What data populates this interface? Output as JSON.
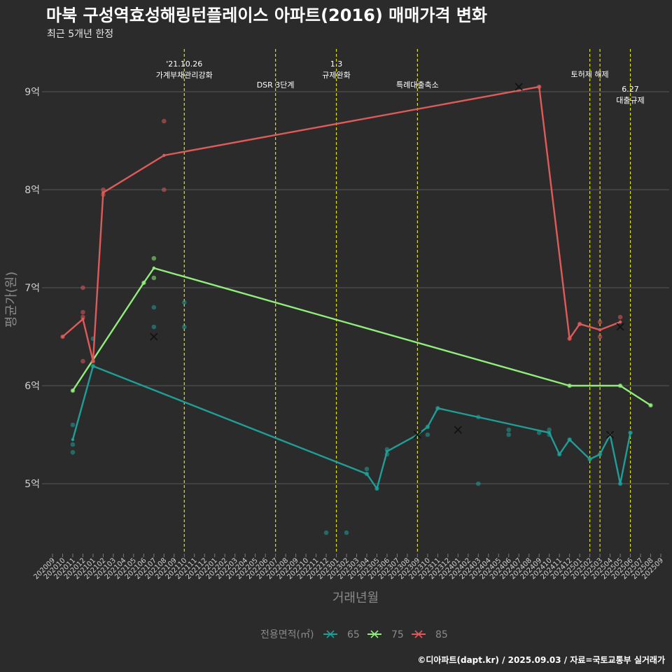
{
  "chart_data": {
    "type": "line",
    "title": "마북 구성역효성해링턴플레이스 아파트(2016) 매매가격 변화",
    "subtitle": "최근 5개년 한정",
    "xlabel": "거래년월",
    "ylabel": "평균가(원)",
    "ylim": [
      4.3,
      9.5
    ],
    "y_ticks": [
      {
        "value": 5,
        "label": "5억"
      },
      {
        "value": 6,
        "label": "6억"
      },
      {
        "value": 7,
        "label": "7억"
      },
      {
        "value": 8,
        "label": "8억"
      },
      {
        "value": 9,
        "label": "9억"
      }
    ],
    "x_categories": [
      "202009",
      "202010",
      "202011",
      "202012",
      "202101",
      "202102",
      "202103",
      "202104",
      "202105",
      "202106",
      "202107",
      "202108",
      "202109",
      "202110",
      "202111",
      "202112",
      "202201",
      "202202",
      "202203",
      "202204",
      "202205",
      "202206",
      "202207",
      "202208",
      "202209",
      "202210",
      "202211",
      "202212",
      "202301",
      "202302",
      "202303",
      "202304",
      "202305",
      "202306",
      "202307",
      "202308",
      "202309",
      "202310",
      "202311",
      "202312",
      "202401",
      "202402",
      "202403",
      "202404",
      "202405",
      "202406",
      "202407",
      "202408",
      "202409",
      "202410",
      "202411",
      "202412",
      "202501",
      "202502",
      "202503",
      "202504",
      "202505",
      "202506",
      "202507",
      "202508",
      "202509"
    ],
    "events": [
      {
        "x": "202110",
        "label": [
          "'21.10.26",
          "가계부채관리강화"
        ],
        "row": 0
      },
      {
        "x": "202207",
        "label": [
          "DSR 3단계"
        ],
        "row": 1
      },
      {
        "x": "202301",
        "label": [
          "1.3",
          "규제완화"
        ],
        "row": 0
      },
      {
        "x": "202309",
        "label": [
          "특례대출축소"
        ],
        "row": 1
      },
      {
        "x": "202502",
        "label": [
          "토허제 해제"
        ],
        "row": 0.5
      },
      {
        "x": "202503",
        "label": [],
        "row": 0
      },
      {
        "x": "202506",
        "label": [
          "6.27",
          "대출규제"
        ],
        "row": 1.2
      }
    ],
    "legend_title": "전용면적(㎡)",
    "legend_position": "bottom",
    "series": [
      {
        "name": "65",
        "color": "#1f9e98",
        "line": [
          [
            "202011",
            5.45
          ],
          [
            "202101",
            6.2
          ],
          [
            "202304",
            5.1
          ],
          [
            "202305",
            4.95
          ],
          [
            "202306",
            5.33
          ],
          [
            "202309",
            5.5
          ],
          [
            "202310",
            5.58
          ],
          [
            "202311",
            5.77
          ],
          [
            "202410",
            5.52
          ],
          [
            "202411",
            5.3
          ],
          [
            "202412",
            5.45
          ],
          [
            "202502",
            5.25
          ],
          [
            "202503",
            5.3
          ],
          [
            "202504",
            5.5
          ],
          [
            "202505",
            5.0
          ],
          [
            "202506",
            5.52
          ]
        ],
        "points": [
          [
            "202011",
            5.6
          ],
          [
            "202011",
            5.4
          ],
          [
            "202011",
            5.32
          ],
          [
            "202101",
            6.2
          ],
          [
            "202101",
            6.48
          ],
          [
            "202107",
            6.8
          ],
          [
            "202107",
            6.6
          ],
          [
            "202110",
            6.85
          ],
          [
            "202110",
            6.6
          ],
          [
            "202212",
            4.5
          ],
          [
            "202302",
            4.5
          ],
          [
            "202304",
            5.15
          ],
          [
            "202304",
            5.1
          ],
          [
            "202305",
            4.95
          ],
          [
            "202306",
            5.35
          ],
          [
            "202306",
            5.3
          ],
          [
            "202310",
            5.58
          ],
          [
            "202310",
            5.5
          ],
          [
            "202311",
            5.77
          ],
          [
            "202403",
            5.68
          ],
          [
            "202403",
            5.0
          ],
          [
            "202406",
            5.55
          ],
          [
            "202406",
            5.5
          ],
          [
            "202409",
            5.52
          ],
          [
            "202410",
            5.55
          ],
          [
            "202410",
            5.5
          ],
          [
            "202411",
            5.3
          ],
          [
            "202412",
            5.45
          ],
          [
            "202502",
            5.25
          ],
          [
            "202503",
            5.3
          ],
          [
            "202505",
            5.0
          ],
          [
            "202506",
            5.52
          ]
        ],
        "crosses": [
          [
            "202107",
            6.5
          ],
          [
            "202309",
            5.5
          ],
          [
            "202401",
            5.55
          ],
          [
            "202504",
            5.5
          ]
        ]
      },
      {
        "name": "75",
        "color": "#90ee7a",
        "line": [
          [
            "202011",
            5.95
          ],
          [
            "202106",
            7.05
          ],
          [
            "202107",
            7.2
          ],
          [
            "202412",
            6.0
          ],
          [
            "202505",
            6.0
          ],
          [
            "202508",
            5.8
          ]
        ],
        "points": [
          [
            "202011",
            5.95
          ],
          [
            "202106",
            7.05
          ],
          [
            "202107",
            7.3
          ],
          [
            "202107",
            7.1
          ],
          [
            "202412",
            6.0
          ],
          [
            "202505",
            6.0
          ],
          [
            "202508",
            5.8
          ]
        ],
        "crosses": []
      },
      {
        "name": "85",
        "color": "#e05a5a",
        "line": [
          [
            "202010",
            6.5
          ],
          [
            "202012",
            6.68
          ],
          [
            "202101",
            6.25
          ],
          [
            "202102",
            7.97
          ],
          [
            "202108",
            8.35
          ],
          [
            "202409",
            9.05
          ],
          [
            "202412",
            6.48
          ],
          [
            "202501",
            6.63
          ],
          [
            "202503",
            6.57
          ],
          [
            "202505",
            6.65
          ]
        ],
        "points": [
          [
            "202010",
            6.5
          ],
          [
            "202012",
            7.0
          ],
          [
            "202012",
            6.75
          ],
          [
            "202012",
            6.7
          ],
          [
            "202012",
            6.25
          ],
          [
            "202101",
            6.25
          ],
          [
            "202102",
            8.0
          ],
          [
            "202102",
            7.95
          ],
          [
            "202108",
            8.7
          ],
          [
            "202108",
            8.0
          ],
          [
            "202409",
            9.05
          ],
          [
            "202412",
            6.48
          ],
          [
            "202501",
            6.63
          ],
          [
            "202503",
            6.65
          ],
          [
            "202503",
            6.5
          ],
          [
            "202505",
            6.7
          ]
        ],
        "crosses": [
          [
            "202407",
            9.05
          ],
          [
            "202505",
            6.6
          ]
        ]
      }
    ],
    "caption": "©디아파트(dapt.kr) / 2025.09.03 / 자료=국토교통부 실거래가"
  }
}
